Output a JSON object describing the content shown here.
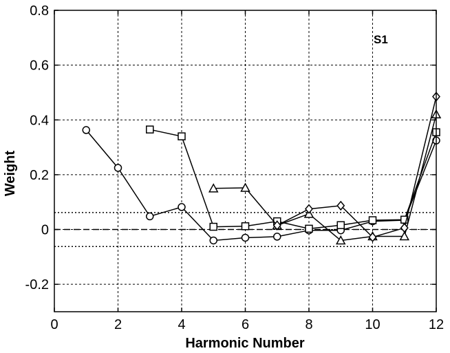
{
  "chart_data": {
    "type": "line",
    "xlabel": "Harmonic Number",
    "ylabel": "Weight",
    "annotation": "S1",
    "xlim": [
      0,
      12
    ],
    "ylim": [
      -0.3,
      0.8
    ],
    "xticks": [
      0,
      2,
      4,
      6,
      8,
      10,
      12
    ],
    "yticks": [
      -0.2,
      0,
      0.2,
      0.4,
      0.6,
      0.8
    ],
    "xtick_labels": [
      "0",
      "2",
      "4",
      "6",
      "8",
      "10",
      "12"
    ],
    "ytick_labels": [
      "-0.2",
      "0",
      "0.2",
      "0.4",
      "0.6",
      "0.8"
    ],
    "grid": true,
    "reference_lines": {
      "zero_dashed": 0,
      "upper_dotted": 0.062,
      "lower_dotted": -0.062
    },
    "series": [
      {
        "marker": "circle",
        "x": [
          1,
          2,
          3,
          4,
          5,
          6,
          7,
          8,
          9,
          10,
          11,
          12
        ],
        "y": [
          0.363,
          0.225,
          0.048,
          0.082,
          -0.04,
          -0.03,
          -0.026,
          -0.003,
          -0.003,
          0.03,
          0.034,
          0.325
        ]
      },
      {
        "marker": "square",
        "x": [
          3,
          4,
          5,
          6,
          7,
          8,
          9,
          10,
          11,
          12
        ],
        "y": [
          0.365,
          0.34,
          0.01,
          0.012,
          0.03,
          0.003,
          0.016,
          0.034,
          0.036,
          0.355
        ]
      },
      {
        "marker": "triangle",
        "x": [
          5,
          6,
          7,
          8,
          9,
          10,
          11,
          12
        ],
        "y": [
          0.15,
          0.152,
          0.015,
          0.057,
          -0.04,
          -0.025,
          -0.025,
          0.42
        ]
      },
      {
        "marker": "diamond",
        "x": [
          7,
          8,
          9,
          10,
          11,
          12
        ],
        "y": [
          0.015,
          0.075,
          0.087,
          -0.028,
          0.006,
          0.485
        ]
      }
    ]
  }
}
